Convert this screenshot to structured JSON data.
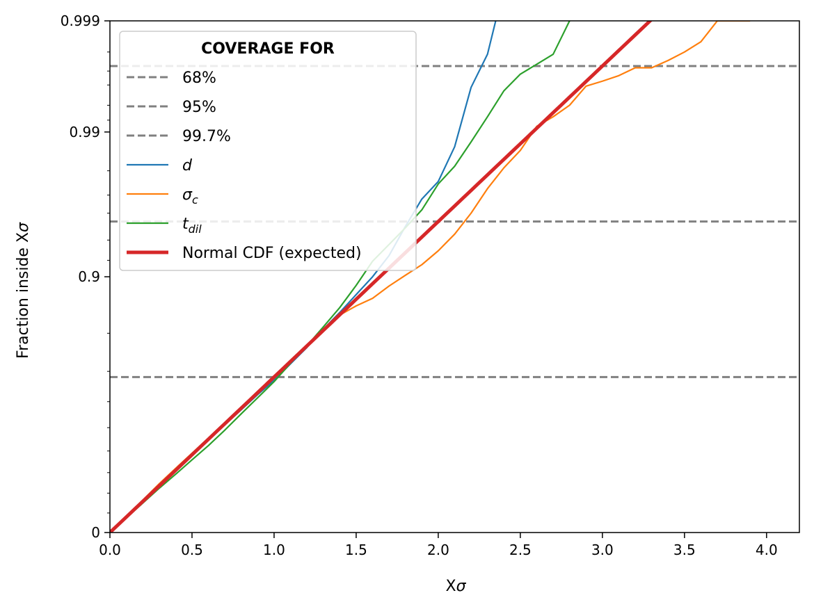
{
  "chart_data": {
    "type": "line",
    "title": "",
    "xlabel": "X",
    "xlabel_symbol": "σ",
    "ylabel": "Fraction inside X",
    "ylabel_symbol": "σ",
    "xlim": [
      0.0,
      4.2
    ],
    "y_scale": "normal-probability",
    "y_display_range": [
      0,
      0.999
    ],
    "x_ticks": [
      "0.0",
      "0.5",
      "1.0",
      "1.5",
      "2.0",
      "2.5",
      "3.0",
      "3.5",
      "4.0"
    ],
    "y_ticks": [
      {
        "value": 0,
        "label": "0"
      },
      {
        "value": 0.9,
        "label": "0.9"
      },
      {
        "value": 0.99,
        "label": "0.99"
      },
      {
        "value": 0.999,
        "label": "0.999"
      }
    ],
    "legend": {
      "title": "COVERAGE FOR",
      "placement": "top-left"
    },
    "reference_lines": [
      {
        "name": "68%",
        "y": 0.6827,
        "color": "#808080",
        "style": "dashed"
      },
      {
        "name": "95%",
        "y": 0.9545,
        "color": "#808080",
        "style": "dashed"
      },
      {
        "name": "99.7%",
        "y": 0.9973,
        "color": "#808080",
        "style": "dashed"
      }
    ],
    "series": [
      {
        "name": "d",
        "sub": "",
        "color": "#1f77b4",
        "width": 2.2,
        "points": [
          [
            0,
            0
          ],
          [
            0.1,
            0.08
          ],
          [
            0.2,
            0.16
          ],
          [
            0.3,
            0.234
          ],
          [
            0.4,
            0.305
          ],
          [
            0.5,
            0.378
          ],
          [
            0.6,
            0.447
          ],
          [
            0.7,
            0.512
          ],
          [
            0.8,
            0.57
          ],
          [
            0.9,
            0.625
          ],
          [
            1.0,
            0.672
          ],
          [
            1.1,
            0.722
          ],
          [
            1.2,
            0.766
          ],
          [
            1.3,
            0.809
          ],
          [
            1.4,
            0.843
          ],
          [
            1.5,
            0.874
          ],
          [
            1.6,
            0.9
          ],
          [
            1.7,
            0.925
          ],
          [
            1.8,
            0.951
          ],
          [
            1.9,
            0.968
          ],
          [
            2.0,
            0.976
          ],
          [
            2.1,
            0.9869
          ],
          [
            2.2,
            0.9958
          ],
          [
            2.3,
            0.9979
          ],
          [
            2.35,
            0.999
          ]
        ]
      },
      {
        "name": "σ",
        "sub": "c",
        "color": "#ff7f0e",
        "width": 2.2,
        "points": [
          [
            0,
            0
          ],
          [
            0.1,
            0.085
          ],
          [
            0.2,
            0.165
          ],
          [
            0.3,
            0.246
          ],
          [
            0.4,
            0.32
          ],
          [
            0.5,
            0.39
          ],
          [
            0.6,
            0.456
          ],
          [
            0.7,
            0.516
          ],
          [
            0.8,
            0.575
          ],
          [
            0.9,
            0.63
          ],
          [
            1.0,
            0.68
          ],
          [
            1.1,
            0.727
          ],
          [
            1.2,
            0.77
          ],
          [
            1.3,
            0.8095
          ],
          [
            1.4,
            0.838
          ],
          [
            1.5,
            0.855
          ],
          [
            1.6,
            0.868
          ],
          [
            1.7,
            0.887
          ],
          [
            1.8,
            0.902
          ],
          [
            1.9,
            0.915
          ],
          [
            2.0,
            0.93
          ],
          [
            2.1,
            0.945
          ],
          [
            2.2,
            0.96
          ],
          [
            2.3,
            0.973
          ],
          [
            2.4,
            0.981
          ],
          [
            2.5,
            0.986
          ],
          [
            2.6,
            0.991
          ],
          [
            2.7,
            0.9925
          ],
          [
            2.8,
            0.994
          ],
          [
            2.9,
            0.9959
          ],
          [
            3.0,
            0.9963
          ],
          [
            3.1,
            0.9967
          ],
          [
            3.2,
            0.9972
          ],
          [
            3.3,
            0.9972
          ],
          [
            3.4,
            0.9976
          ],
          [
            3.5,
            0.998
          ],
          [
            3.6,
            0.9984
          ],
          [
            3.7,
            0.999
          ],
          [
            3.8,
            0.999
          ],
          [
            3.9,
            0.999
          ]
        ]
      },
      {
        "name": "t",
        "sub": "dil",
        "color": "#2ca02c",
        "width": 2.2,
        "points": [
          [
            0,
            0
          ],
          [
            0.1,
            0.075
          ],
          [
            0.2,
            0.15
          ],
          [
            0.3,
            0.224
          ],
          [
            0.4,
            0.292
          ],
          [
            0.5,
            0.36
          ],
          [
            0.6,
            0.424
          ],
          [
            0.7,
            0.49
          ],
          [
            0.8,
            0.555
          ],
          [
            0.9,
            0.614
          ],
          [
            1.0,
            0.668
          ],
          [
            1.1,
            0.724
          ],
          [
            1.2,
            0.77
          ],
          [
            1.3,
            0.814
          ],
          [
            1.4,
            0.852
          ],
          [
            1.5,
            0.888
          ],
          [
            1.6,
            0.919
          ],
          [
            1.7,
            0.936
          ],
          [
            1.8,
            0.95
          ],
          [
            1.9,
            0.962
          ],
          [
            2.0,
            0.975
          ],
          [
            2.1,
            0.9815
          ],
          [
            2.2,
            0.988
          ],
          [
            2.3,
            0.9925
          ],
          [
            2.4,
            0.9955
          ],
          [
            2.5,
            0.9968
          ],
          [
            2.6,
            0.9974
          ],
          [
            2.7,
            0.9979
          ],
          [
            2.8,
            0.999
          ]
        ]
      },
      {
        "name": "Normal CDF (expected)",
        "sub": "",
        "color": "#d62728",
        "width": 5,
        "expected_normal": true,
        "x_end": 3.3
      }
    ]
  }
}
